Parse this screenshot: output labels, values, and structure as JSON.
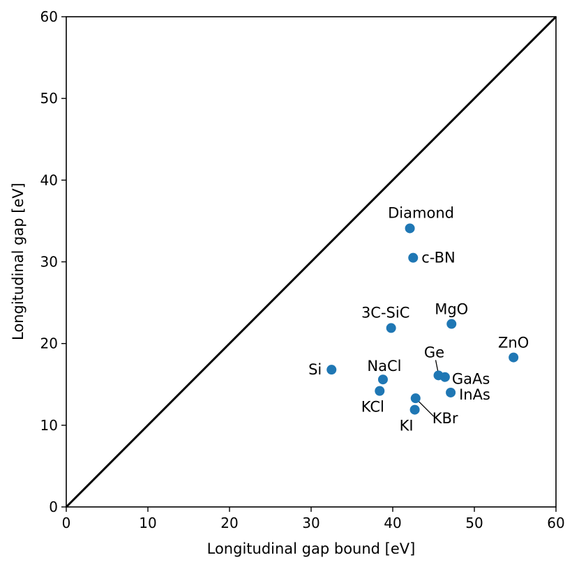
{
  "chart_data": {
    "type": "scatter",
    "xlabel": "Longitudinal gap bound [eV]",
    "ylabel": "Longitudinal gap [eV]",
    "xlim": [
      0,
      60
    ],
    "ylim": [
      0,
      60
    ],
    "xticks": [
      "0",
      "10",
      "20",
      "30",
      "40",
      "50",
      "60"
    ],
    "yticks": [
      "0",
      "10",
      "20",
      "30",
      "40",
      "50",
      "60"
    ],
    "grid": false,
    "reference_line": {
      "style": "y = x",
      "color": "#000000"
    },
    "marker_color": "#1f77b4",
    "points": [
      {
        "label": "Diamond",
        "x": 42.1,
        "y": 34.1
      },
      {
        "label": "c-BN",
        "x": 42.5,
        "y": 30.5
      },
      {
        "label": "3C-SiC",
        "x": 39.8,
        "y": 21.9
      },
      {
        "label": "MgO",
        "x": 47.2,
        "y": 22.4
      },
      {
        "label": "ZnO",
        "x": 54.8,
        "y": 18.3
      },
      {
        "label": "Si",
        "x": 32.5,
        "y": 16.8
      },
      {
        "label": "NaCl",
        "x": 38.8,
        "y": 15.6
      },
      {
        "label": "Ge",
        "x": 45.6,
        "y": 16.1
      },
      {
        "label": "GaAs",
        "x": 46.4,
        "y": 15.9
      },
      {
        "label": "KCl",
        "x": 38.4,
        "y": 14.2
      },
      {
        "label": "InAs",
        "x": 47.1,
        "y": 14.0
      },
      {
        "label": "KBr",
        "x": 42.8,
        "y": 13.3
      },
      {
        "label": "KI",
        "x": 42.7,
        "y": 11.9
      }
    ]
  }
}
